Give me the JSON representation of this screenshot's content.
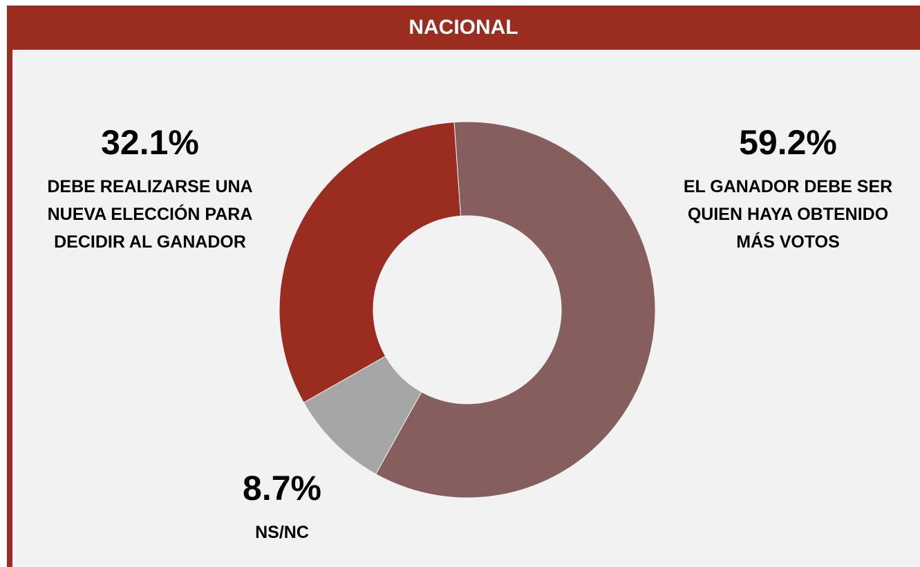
{
  "chart_data": {
    "type": "donut",
    "title": "NACIONAL",
    "categories": [
      "EL GANADOR DEBE SER\nQUIEN HAYA OBTENIDO\nMÁS VOTOS",
      "NS/NC",
      "DEBE REALIZARSE UNA\nNUEVA ELECCIÓN PARA\nDECIDIR AL GANADOR"
    ],
    "values": [
      59.2,
      8.7,
      32.1
    ],
    "value_labels": [
      "59.2%",
      "8.7%",
      "32.1%"
    ],
    "colors": [
      "#855e5d",
      "#a6a6a6",
      "#9b2d20"
    ]
  }
}
